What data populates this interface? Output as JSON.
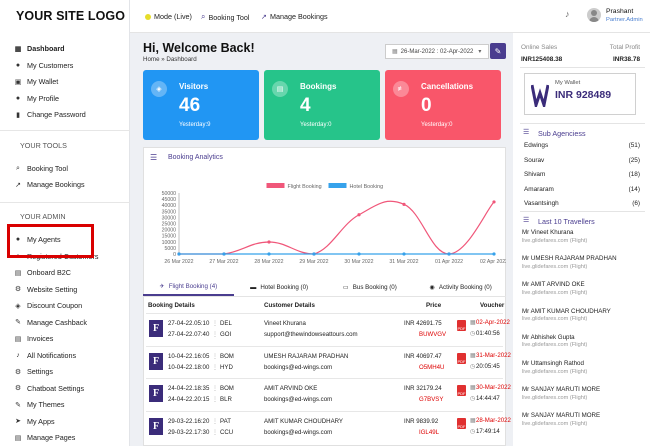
{
  "sidebar": {
    "logo": "YOUR SITE LOGO",
    "main_items": [
      {
        "label": "Dashboard",
        "icon": "dashboard-icon",
        "glyph": "▦"
      },
      {
        "label": "My Customers",
        "icon": "user-icon",
        "glyph": "●"
      },
      {
        "label": "My Wallet",
        "icon": "wallet-icon",
        "glyph": "▣"
      },
      {
        "label": "My Profile",
        "icon": "profile-icon",
        "glyph": "●"
      },
      {
        "label": "Change Password",
        "icon": "lock-icon",
        "glyph": "▮"
      }
    ],
    "tools_title": "YOUR TOOLS",
    "tools_items": [
      {
        "label": "Booking Tool",
        "icon": "search-icon",
        "glyph": "⌕"
      },
      {
        "label": "Manage Bookings",
        "icon": "chart-icon",
        "glyph": "↗"
      }
    ],
    "admin_title": "YOUR ADMIN",
    "admin_items": [
      {
        "label": "My Agents",
        "icon": "users-icon",
        "glyph": "●"
      },
      {
        "label": "Registered Customers",
        "icon": "users-icon",
        "glyph": "●"
      },
      {
        "label": "Onboard B2C",
        "icon": "onboard-icon",
        "glyph": "▤"
      },
      {
        "label": "Website Setting",
        "icon": "gear-icon",
        "glyph": "⚙"
      },
      {
        "label": "Discount Coupon",
        "icon": "coupon-icon",
        "glyph": "◈"
      },
      {
        "label": "Manage Cashback",
        "icon": "edit-icon",
        "glyph": "✎"
      },
      {
        "label": "Invoices",
        "icon": "invoice-icon",
        "glyph": "▤"
      },
      {
        "label": "All Notifications",
        "icon": "bell-icon",
        "glyph": "♪"
      },
      {
        "label": "Settings",
        "icon": "gear-icon",
        "glyph": "⚙"
      },
      {
        "label": "Chatboat Settings",
        "icon": "gear-icon",
        "glyph": "⚙"
      },
      {
        "label": "My Themes",
        "icon": "brush-icon",
        "glyph": "✎"
      },
      {
        "label": "My Apps",
        "icon": "send-icon",
        "glyph": "➤"
      },
      {
        "label": "Manage Pages",
        "icon": "page-icon",
        "glyph": "▤"
      }
    ]
  },
  "topbar": {
    "mode": "Mode (Live)",
    "booking_tool": "Booking Tool",
    "manage_bookings": "Manage Bookings",
    "user_name": "Prashant",
    "user_role": "Partner.Admin"
  },
  "main": {
    "greeting": "Hi, Welcome Back!",
    "breadcrumb": "Home » Dashboard",
    "date_range": "26-Mar-2022 : 02-Apr-2022",
    "cards": [
      {
        "title": "Visitors",
        "value": "46",
        "sub": "Yesterday:9",
        "color": "#2196f3"
      },
      {
        "title": "Bookings",
        "value": "4",
        "sub": "Yesterday:0",
        "color": "#26c48a"
      },
      {
        "title": "Cancellations",
        "value": "0",
        "sub": "Yesterday:0",
        "color": "#f9566a"
      }
    ],
    "analytics_title": "Booking Analytics",
    "tabs": [
      "Flight Booking (4)",
      "Hotel Booking (0)",
      "Bus Booking (0)",
      "Activity Booking (0)"
    ],
    "table_headers": {
      "details": "Booking Details",
      "customer": "Customer Details",
      "price": "Price",
      "voucher": "Voucher"
    },
    "rows": [
      {
        "dep_time": "27-04-22.05:10",
        "dep": "DEL",
        "arr_time": "27-04-22.07:40",
        "arr": "GOI",
        "name": "Vineet Khurana",
        "email": "support@thewindowseattours.com",
        "price": "INR 42691.75",
        "ref": "BUWVGV",
        "date": "02-Apr-2022",
        "time": "01:40:56"
      },
      {
        "dep_time": "10-04-22.16:05",
        "dep": "BOM",
        "arr_time": "10-04-22.18:00",
        "arr": "HYD",
        "name": "UMESH RAJARAM PRADHAN",
        "email": "bookings@ed-wings.com",
        "price": "INR 40697.47",
        "ref": "O5MH4U",
        "date": "31-Mar-2022",
        "time": "20:05:45"
      },
      {
        "dep_time": "24-04-22.18:35",
        "dep": "BOM",
        "arr_time": "24-04-22.20:15",
        "arr": "BLR",
        "name": "AMIT ARVIND OKE",
        "email": "bookings@ed-wings.com",
        "price": "INR 32179.24",
        "ref": "G7BVSY",
        "date": "30-Mar-2022",
        "time": "14:44:47"
      },
      {
        "dep_time": "29-03-22.16:20",
        "dep": "PAT",
        "arr_time": "29-03-22.17:30",
        "arr": "CCU",
        "name": "AMIT KUMAR CHOUDHARY",
        "email": "bookings@ed-wings.com",
        "price": "INR 9839.92",
        "ref": "IGL49L",
        "date": "28-Mar-2022",
        "time": "17:49:14"
      }
    ]
  },
  "right": {
    "online_sales_label": "Online Sales",
    "total_profit_label": "Total Profit",
    "online_sales": "INR125408.38",
    "total_profit": "INR38.78",
    "wallet_label": "My Wallet",
    "wallet_value": "INR 928489",
    "sub_agencies_title": "Sub Agenciess",
    "sub_agencies": [
      {
        "name": "Edwings",
        "count": "(51)"
      },
      {
        "name": "Sourav",
        "count": "(25)"
      },
      {
        "name": "Shivam",
        "count": "(18)"
      },
      {
        "name": "Amararam",
        "count": "(14)"
      },
      {
        "name": "Vasantsingh",
        "count": "(6)"
      }
    ],
    "travellers_title": "Last 10 Travellers",
    "travellers": [
      {
        "name": "Mr Vineet Khurana",
        "sub": "live.glidefares.com (Flight)"
      },
      {
        "name": "Mr UMESH RAJARAM PRADHAN",
        "sub": "live.glidefares.com (Flight)"
      },
      {
        "name": "Mr AMIT ARVIND OKE",
        "sub": "live.glidefares.com (Flight)"
      },
      {
        "name": "Mr AMIT KUMAR CHOUDHARY",
        "sub": "live.glidefares.com (Flight)"
      },
      {
        "name": "Mr Abhishek Gupta",
        "sub": "live.glidefares.com (Flight)"
      },
      {
        "name": "Mr Uttamsingh Rathod",
        "sub": "live.glidefares.com (Flight)"
      },
      {
        "name": "Mr SANJAY MARUTI MORE",
        "sub": "live.glidefares.com (Flight)"
      },
      {
        "name": "Mr SANJAY MARUTI MORE",
        "sub": "live.glidefares.com (Flight)"
      }
    ]
  },
  "chart_data": {
    "type": "line",
    "categories": [
      "26 Mar 2022",
      "27 Mar 2022",
      "28 Mar 2022",
      "29 Mar 2022",
      "30 Mar 2022",
      "31 Mar 2022",
      "01 Apr 2022",
      "02 Apr 2022"
    ],
    "series": [
      {
        "name": "Flight Booking",
        "color": "#f0577a",
        "values": [
          0,
          0,
          9840,
          0,
          32179,
          40697,
          0,
          42692
        ]
      },
      {
        "name": "Hotel Booking",
        "color": "#36a2eb",
        "values": [
          0,
          0,
          0,
          0,
          0,
          0,
          0,
          0
        ]
      }
    ],
    "ylim": [
      0,
      50000
    ],
    "yticks": [
      "0",
      "5000",
      "10000",
      "15000",
      "20000",
      "25000",
      "30000",
      "35000",
      "40000",
      "45000",
      "50000"
    ],
    "legend": "top-center",
    "grid": false
  }
}
